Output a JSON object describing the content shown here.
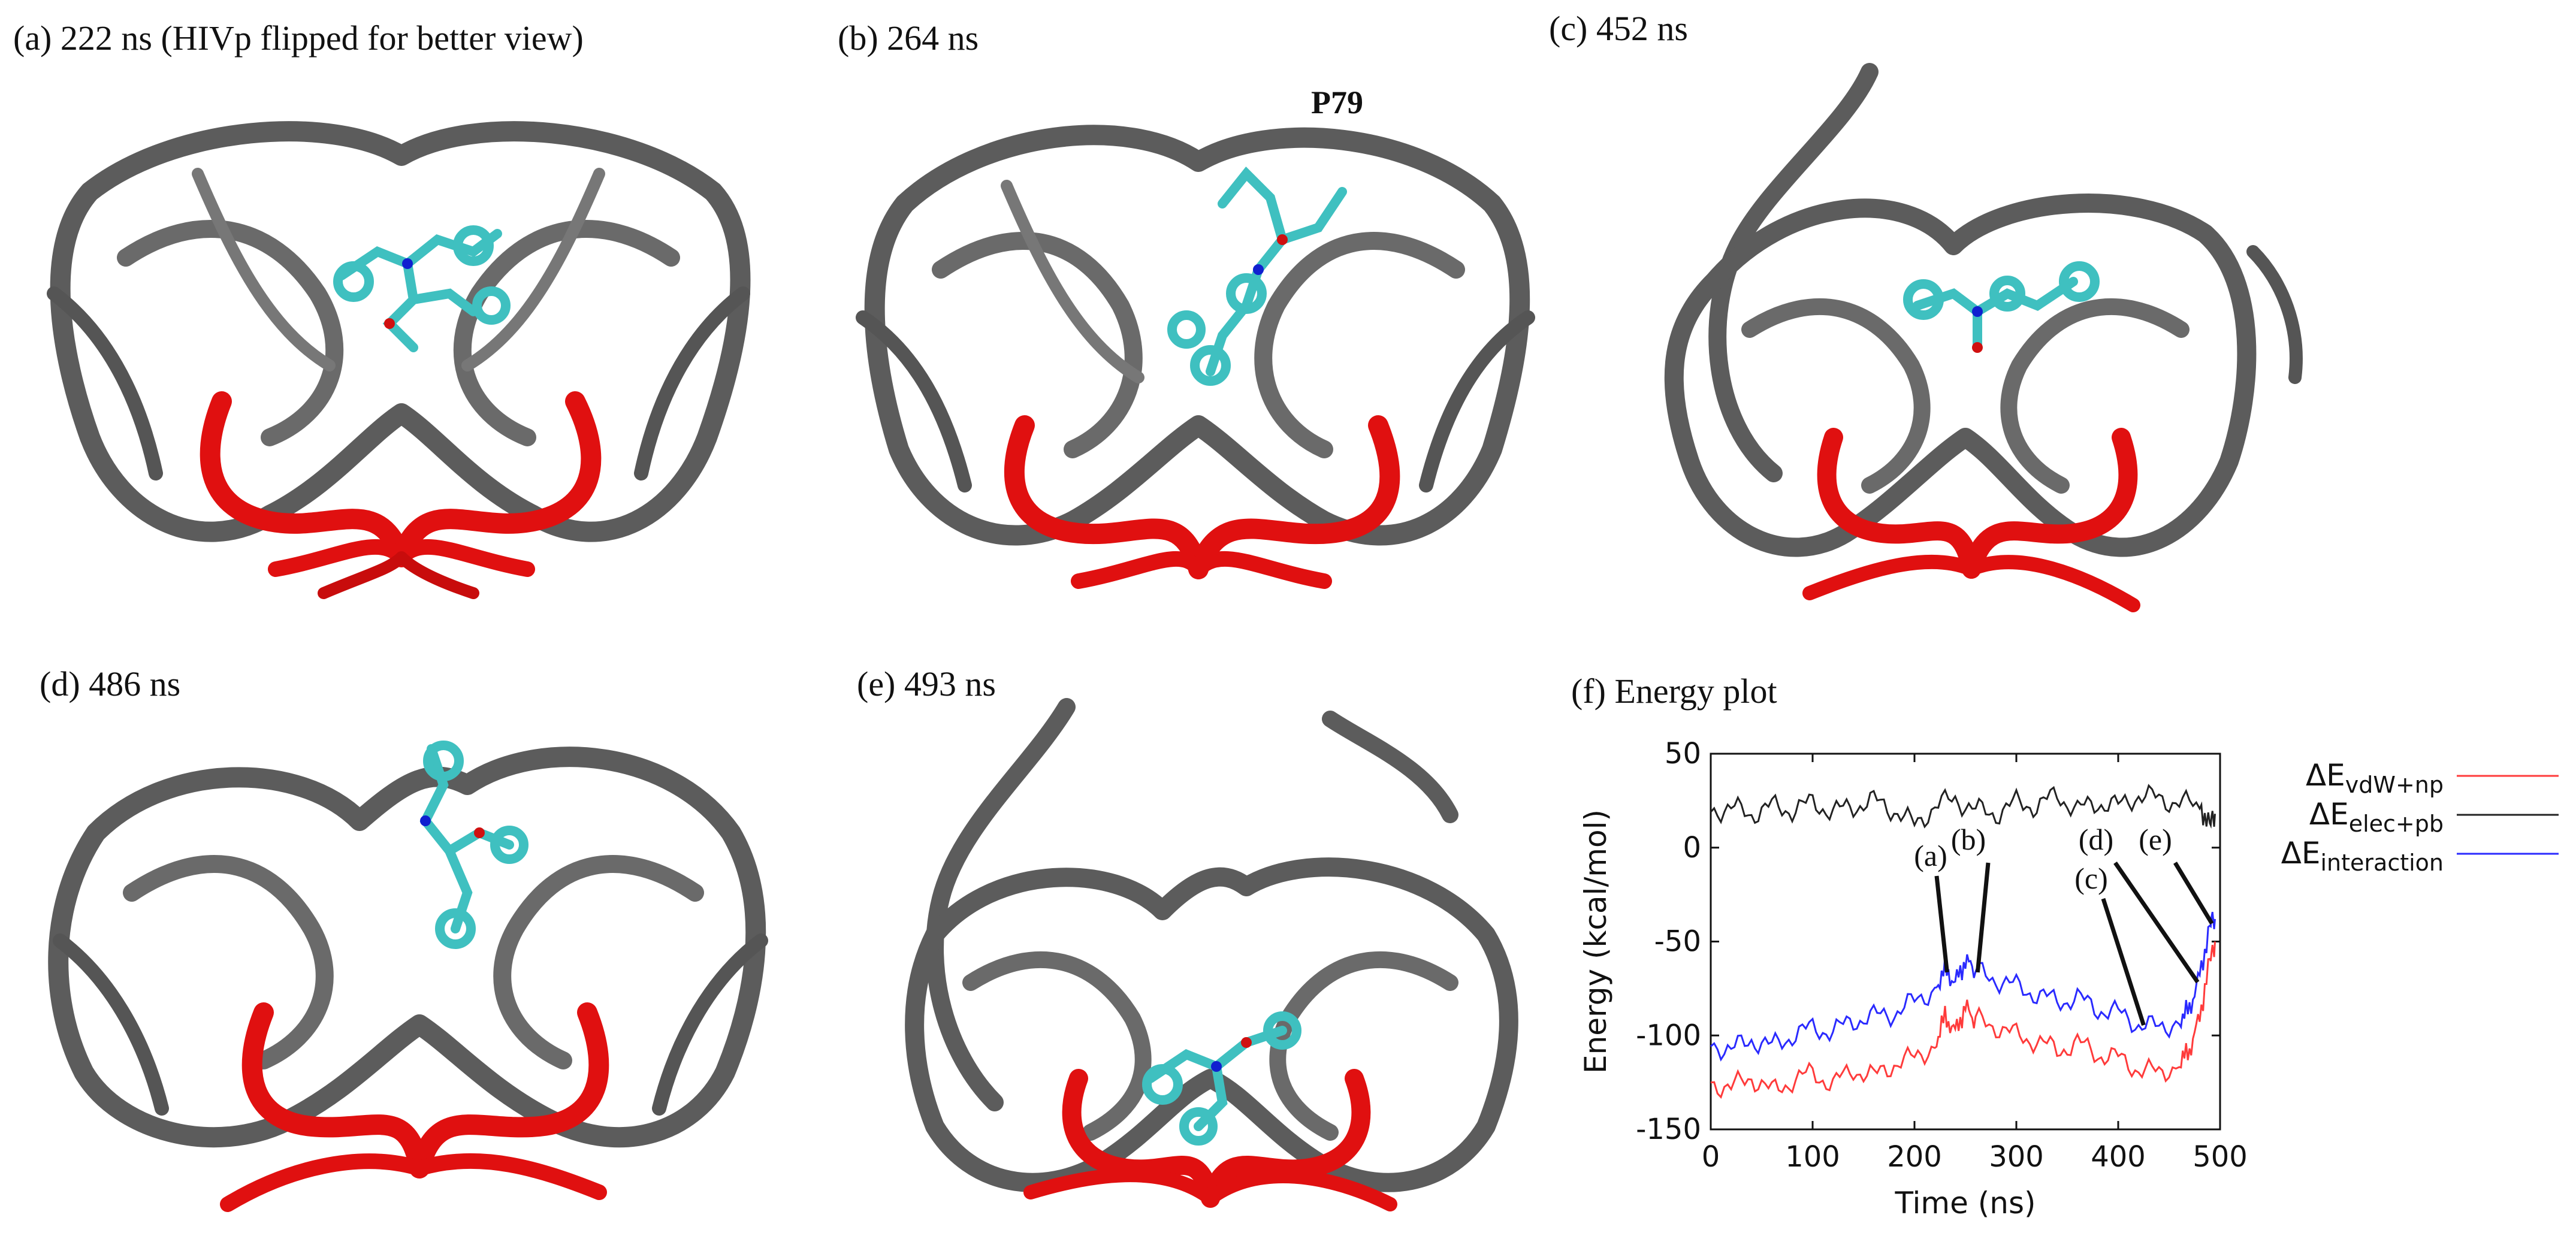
{
  "panels": [
    {
      "id": "a",
      "label": "(a) 222 ns (HIVp flipped for better view)"
    },
    {
      "id": "b",
      "label": "(b) 264 ns",
      "residue_label": "P79"
    },
    {
      "id": "c",
      "label": "(c) 452 ns"
    },
    {
      "id": "d",
      "label": "(d) 486 ns"
    },
    {
      "id": "e",
      "label": "(e) 493 ns"
    },
    {
      "id": "f",
      "label": "(f) Energy plot"
    }
  ],
  "colors": {
    "protein": "#5c5c5c",
    "flap": "#e01010",
    "ligand": "#3fc0c0",
    "nitrogen": "#1020d0",
    "oxygen": "#d01010",
    "vdw": "#ff3b3b",
    "elec": "#222222",
    "interaction": "#2a2aff"
  },
  "chart_data": {
    "type": "line",
    "title": "(f) Energy plot",
    "xlabel": "Time (ns)",
    "ylabel": "Energy (kcal/mol)",
    "xlim": [
      0,
      500
    ],
    "ylim": [
      -150,
      50
    ],
    "xticks": [
      "0",
      "100",
      "200",
      "300",
      "400",
      "500"
    ],
    "yticks": [
      "50",
      "0",
      "-50",
      "-100",
      "-150"
    ],
    "legend_position": "outside-right",
    "series": [
      {
        "name": "ΔE",
        "sub": "vdW+np",
        "color": "#ff3b3b",
        "x": [
          0,
          20,
          40,
          60,
          80,
          100,
          120,
          140,
          160,
          180,
          200,
          220,
          230,
          240,
          250,
          260,
          280,
          300,
          320,
          340,
          360,
          380,
          400,
          420,
          440,
          460,
          470,
          480,
          490,
          495
        ],
        "y": [
          -125,
          -128,
          -122,
          -130,
          -124,
          -120,
          -126,
          -118,
          -122,
          -115,
          -112,
          -105,
          -90,
          -98,
          -85,
          -92,
          -95,
          -100,
          -103,
          -108,
          -104,
          -110,
          -112,
          -118,
          -120,
          -115,
          -108,
          -90,
          -60,
          -50
        ]
      },
      {
        "name": "ΔE",
        "sub": "elec+pb",
        "color": "#222222",
        "x": [
          0,
          20,
          40,
          60,
          80,
          100,
          120,
          140,
          160,
          180,
          200,
          220,
          240,
          260,
          280,
          300,
          320,
          340,
          360,
          380,
          400,
          420,
          440,
          460,
          480,
          490,
          495
        ],
        "y": [
          20,
          21,
          18,
          22,
          20,
          24,
          19,
          22,
          25,
          20,
          12,
          22,
          26,
          20,
          18,
          24,
          22,
          28,
          20,
          24,
          22,
          28,
          26,
          24,
          22,
          12,
          18
        ]
      },
      {
        "name": "ΔE",
        "sub": "interaction",
        "color": "#2a2aff",
        "x": [
          0,
          20,
          40,
          60,
          80,
          100,
          120,
          140,
          160,
          180,
          200,
          220,
          230,
          240,
          250,
          260,
          280,
          300,
          320,
          340,
          360,
          380,
          400,
          420,
          440,
          460,
          470,
          480,
          490,
          495
        ],
        "y": [
          -104,
          -108,
          -102,
          -106,
          -100,
          -96,
          -98,
          -92,
          -90,
          -88,
          -82,
          -75,
          -65,
          -72,
          -60,
          -66,
          -70,
          -74,
          -78,
          -82,
          -80,
          -86,
          -88,
          -94,
          -96,
          -92,
          -86,
          -68,
          -42,
          -38
        ]
      }
    ],
    "annotations": [
      {
        "label": "(a)",
        "t": 232
      },
      {
        "label": "(b)",
        "t": 262
      },
      {
        "label": "(c)",
        "t": 425
      },
      {
        "label": "(d)",
        "t": 478
      },
      {
        "label": "(e)",
        "t": 492
      }
    ]
  }
}
